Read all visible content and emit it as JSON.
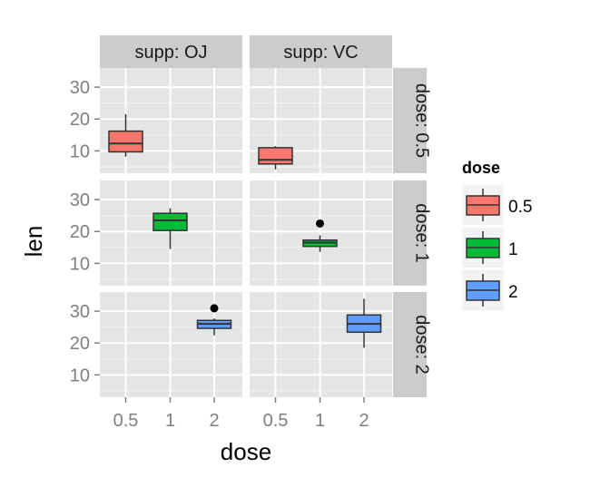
{
  "chart_data": {
    "type": "boxplot",
    "facet_columns": [
      "supp: OJ",
      "supp: VC"
    ],
    "facet_rows": [
      "dose: 0.5",
      "dose: 1",
      "dose: 2"
    ],
    "xlabel": "dose",
    "ylabel": "len",
    "x_categories": [
      "0.5",
      "1",
      "2"
    ],
    "y_ticks": [
      10,
      20,
      30
    ],
    "ylim": [
      3,
      36
    ],
    "grid": true,
    "legend": {
      "title": "dose",
      "position": "right",
      "entries": [
        "0.5",
        "1",
        "2"
      ]
    },
    "colors": {
      "0.5": "#f8766d",
      "1": "#00ba38",
      "2": "#619cff"
    },
    "boxes": [
      {
        "supp": "OJ",
        "dose": "0.5",
        "min": 8.2,
        "q1": 9.7,
        "median": 12.3,
        "q3": 16.2,
        "max": 21.5,
        "outliers": []
      },
      {
        "supp": "VC",
        "dose": "0.5",
        "min": 4.2,
        "q1": 5.9,
        "median": 7.2,
        "q3": 11.0,
        "max": 11.5,
        "outliers": []
      },
      {
        "supp": "OJ",
        "dose": "1",
        "min": 14.5,
        "q1": 20.3,
        "median": 23.5,
        "q3": 25.7,
        "max": 27.3,
        "outliers": []
      },
      {
        "supp": "VC",
        "dose": "1",
        "min": 13.6,
        "q1": 15.3,
        "median": 16.5,
        "q3": 17.3,
        "max": 18.8,
        "outliers": [
          22.5
        ]
      },
      {
        "supp": "OJ",
        "dose": "2",
        "min": 22.4,
        "q1": 24.6,
        "median": 26.0,
        "q3": 27.1,
        "max": 27.7,
        "outliers": [
          30.9
        ]
      },
      {
        "supp": "VC",
        "dose": "2",
        "min": 18.5,
        "q1": 23.4,
        "median": 26.0,
        "q3": 28.8,
        "max": 33.9,
        "outliers": []
      }
    ]
  }
}
